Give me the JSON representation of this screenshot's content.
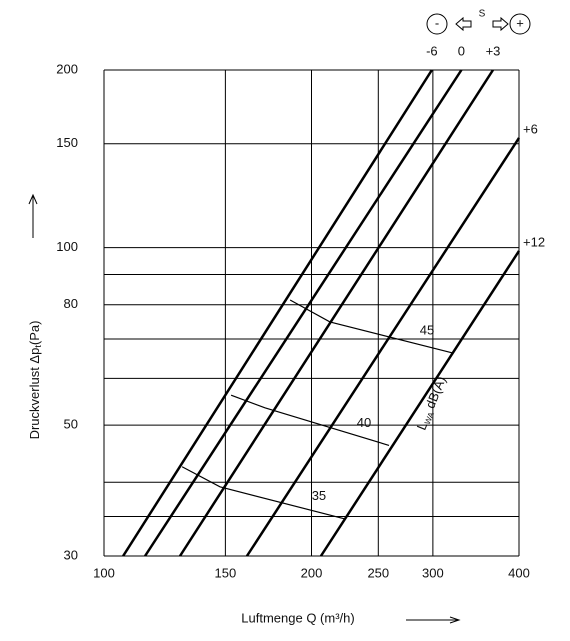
{
  "chart_data": {
    "type": "line",
    "x_label": "Luftmenge Q (m³/h)",
    "y_label": {
      "main": "Druckverlust ",
      "symbol": "Δp",
      "sub": "t",
      "unit": "(Pa)"
    },
    "xlim": [
      100,
      400
    ],
    "ylim": [
      30,
      200
    ],
    "xlog": true,
    "ylog": true,
    "grid": true,
    "xticks": [
      100,
      150,
      200,
      250,
      300,
      400
    ],
    "yticks": [
      30,
      50,
      80,
      100,
      150,
      200
    ],
    "yminor_grid": [
      35,
      40,
      60,
      70,
      90
    ],
    "color": "#000000",
    "setting_legend": {
      "minus": "-",
      "center": "S",
      "plus": "+"
    },
    "series": [
      {
        "name": "-6",
        "x": [
          106.6,
          299
        ],
        "values": [
          30,
          200
        ]
      },
      {
        "name": "0",
        "x": [
          114.7,
          330
        ],
        "values": [
          30,
          200
        ]
      },
      {
        "name": "+3",
        "x": [
          128.9,
          366.7
        ],
        "values": [
          30,
          200
        ]
      },
      {
        "name": "+6",
        "x": [
          161.2,
          400
        ],
        "values": [
          30,
          153.4
        ]
      },
      {
        "name": "+12",
        "x": [
          206.4,
          400
        ],
        "values": [
          30,
          98.7
        ]
      }
    ],
    "contours": [
      {
        "name": "45",
        "x": [
          186.2,
          212.7,
          319.8
        ],
        "values": [
          81.5,
          74.8,
          66.3
        ]
      },
      {
        "name": "40",
        "x": [
          152.9,
          171.2,
          259.1
        ],
        "values": [
          56.2,
          53.5,
          46.2
        ]
      },
      {
        "name": "35",
        "x": [
          129.8,
          147.3,
          222.9
        ],
        "values": [
          42.5,
          39.3,
          34.7
        ]
      }
    ],
    "contour_label": {
      "main": "L",
      "sub": "WA",
      "unit": " dB(A)"
    }
  }
}
